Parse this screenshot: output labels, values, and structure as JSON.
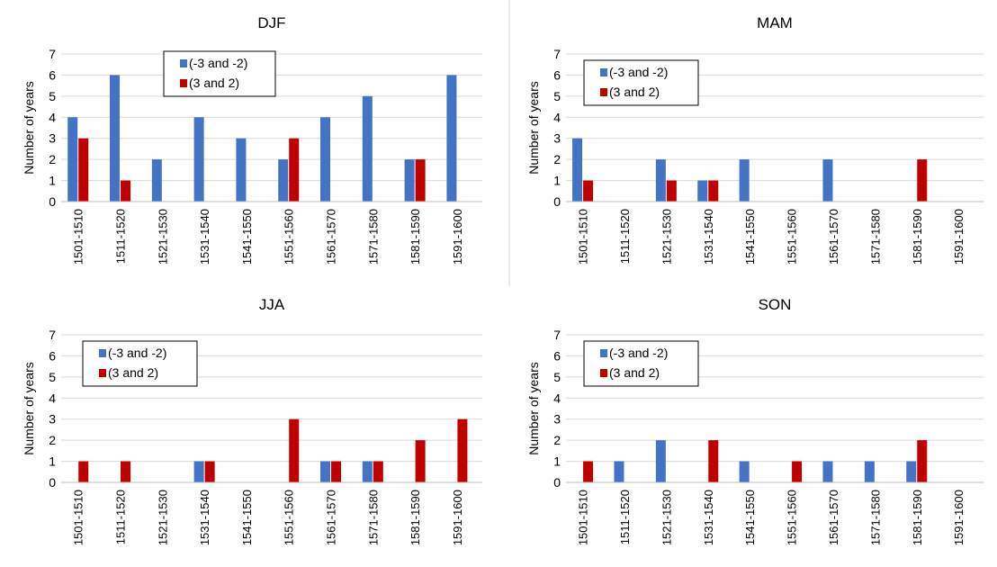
{
  "series_colors": {
    "negative": "#4472C4",
    "positive": "#C00000"
  },
  "chart_data": [
    {
      "type": "bar",
      "title": "DJF",
      "ylabel": "Number of years",
      "xlabel": "",
      "ylim": [
        0,
        7
      ],
      "yticks": [
        0,
        1,
        2,
        3,
        4,
        5,
        6,
        7
      ],
      "grid": true,
      "legend": "top-left",
      "categories": [
        "1501-1510",
        "1511-1520",
        "1521-1530",
        "1531-1540",
        "1541-1550",
        "1551-1560",
        "1561-1570",
        "1571-1580",
        "1581-1590",
        "1591-1600"
      ],
      "series": [
        {
          "name": "(-3 and -2)",
          "color": "#4472C4",
          "values": [
            4,
            6,
            2,
            4,
            3,
            2,
            4,
            5,
            2,
            6
          ]
        },
        {
          "name": "(3 and 2)",
          "color": "#C00000",
          "values": [
            3,
            1,
            0,
            0,
            0,
            3,
            0,
            0,
            2,
            0
          ]
        }
      ]
    },
    {
      "type": "bar",
      "title": "MAM",
      "ylabel": "Number of years",
      "xlabel": "",
      "ylim": [
        0,
        7
      ],
      "yticks": [
        0,
        1,
        2,
        3,
        4,
        5,
        6,
        7
      ],
      "grid": true,
      "legend": "top-left",
      "categories": [
        "1501-1510",
        "1511-1520",
        "1521-1530",
        "1531-1540",
        "1541-1550",
        "1551-1560",
        "1561-1570",
        "1571-1580",
        "1581-1590",
        "1591-1600"
      ],
      "series": [
        {
          "name": "(-3 and -2)",
          "color": "#4472C4",
          "values": [
            3,
            0,
            2,
            1,
            2,
            0,
            2,
            0,
            0,
            0
          ]
        },
        {
          "name": "(3 and 2)",
          "color": "#C00000",
          "values": [
            1,
            0,
            1,
            1,
            0,
            0,
            0,
            0,
            2,
            0
          ]
        }
      ]
    },
    {
      "type": "bar",
      "title": "JJA",
      "ylabel": "Number of years",
      "xlabel": "",
      "ylim": [
        0,
        7
      ],
      "yticks": [
        0,
        1,
        2,
        3,
        4,
        5,
        6,
        7
      ],
      "grid": true,
      "legend": "top-left",
      "categories": [
        "1501-1510",
        "1511-1520",
        "1521-1530",
        "1531-1540",
        "1541-1550",
        "1551-1560",
        "1561-1570",
        "1571-1580",
        "1581-1590",
        "1591-1600"
      ],
      "series": [
        {
          "name": "(-3 and -2)",
          "color": "#4472C4",
          "values": [
            0,
            0,
            0,
            1,
            0,
            0,
            1,
            1,
            0,
            0
          ]
        },
        {
          "name": "(3 and 2)",
          "color": "#C00000",
          "values": [
            1,
            1,
            0,
            1,
            0,
            3,
            1,
            1,
            2,
            3
          ]
        }
      ]
    },
    {
      "type": "bar",
      "title": "SON",
      "ylabel": "Number of years",
      "xlabel": "",
      "ylim": [
        0,
        7
      ],
      "yticks": [
        0,
        1,
        2,
        3,
        4,
        5,
        6,
        7
      ],
      "grid": true,
      "legend": "top-left",
      "categories": [
        "1501-1510",
        "1511-1520",
        "1521-1530",
        "1531-1540",
        "1541-1550",
        "1551-1560",
        "1561-1570",
        "1571-1580",
        "1581-1590",
        "1591-1600"
      ],
      "series": [
        {
          "name": "(-3 and -2)",
          "color": "#4472C4",
          "values": [
            0,
            1,
            2,
            0,
            1,
            0,
            1,
            1,
            1,
            0
          ]
        },
        {
          "name": "(3 and 2)",
          "color": "#C00000",
          "values": [
            1,
            0,
            0,
            2,
            0,
            1,
            0,
            0,
            2,
            0
          ]
        }
      ]
    }
  ]
}
